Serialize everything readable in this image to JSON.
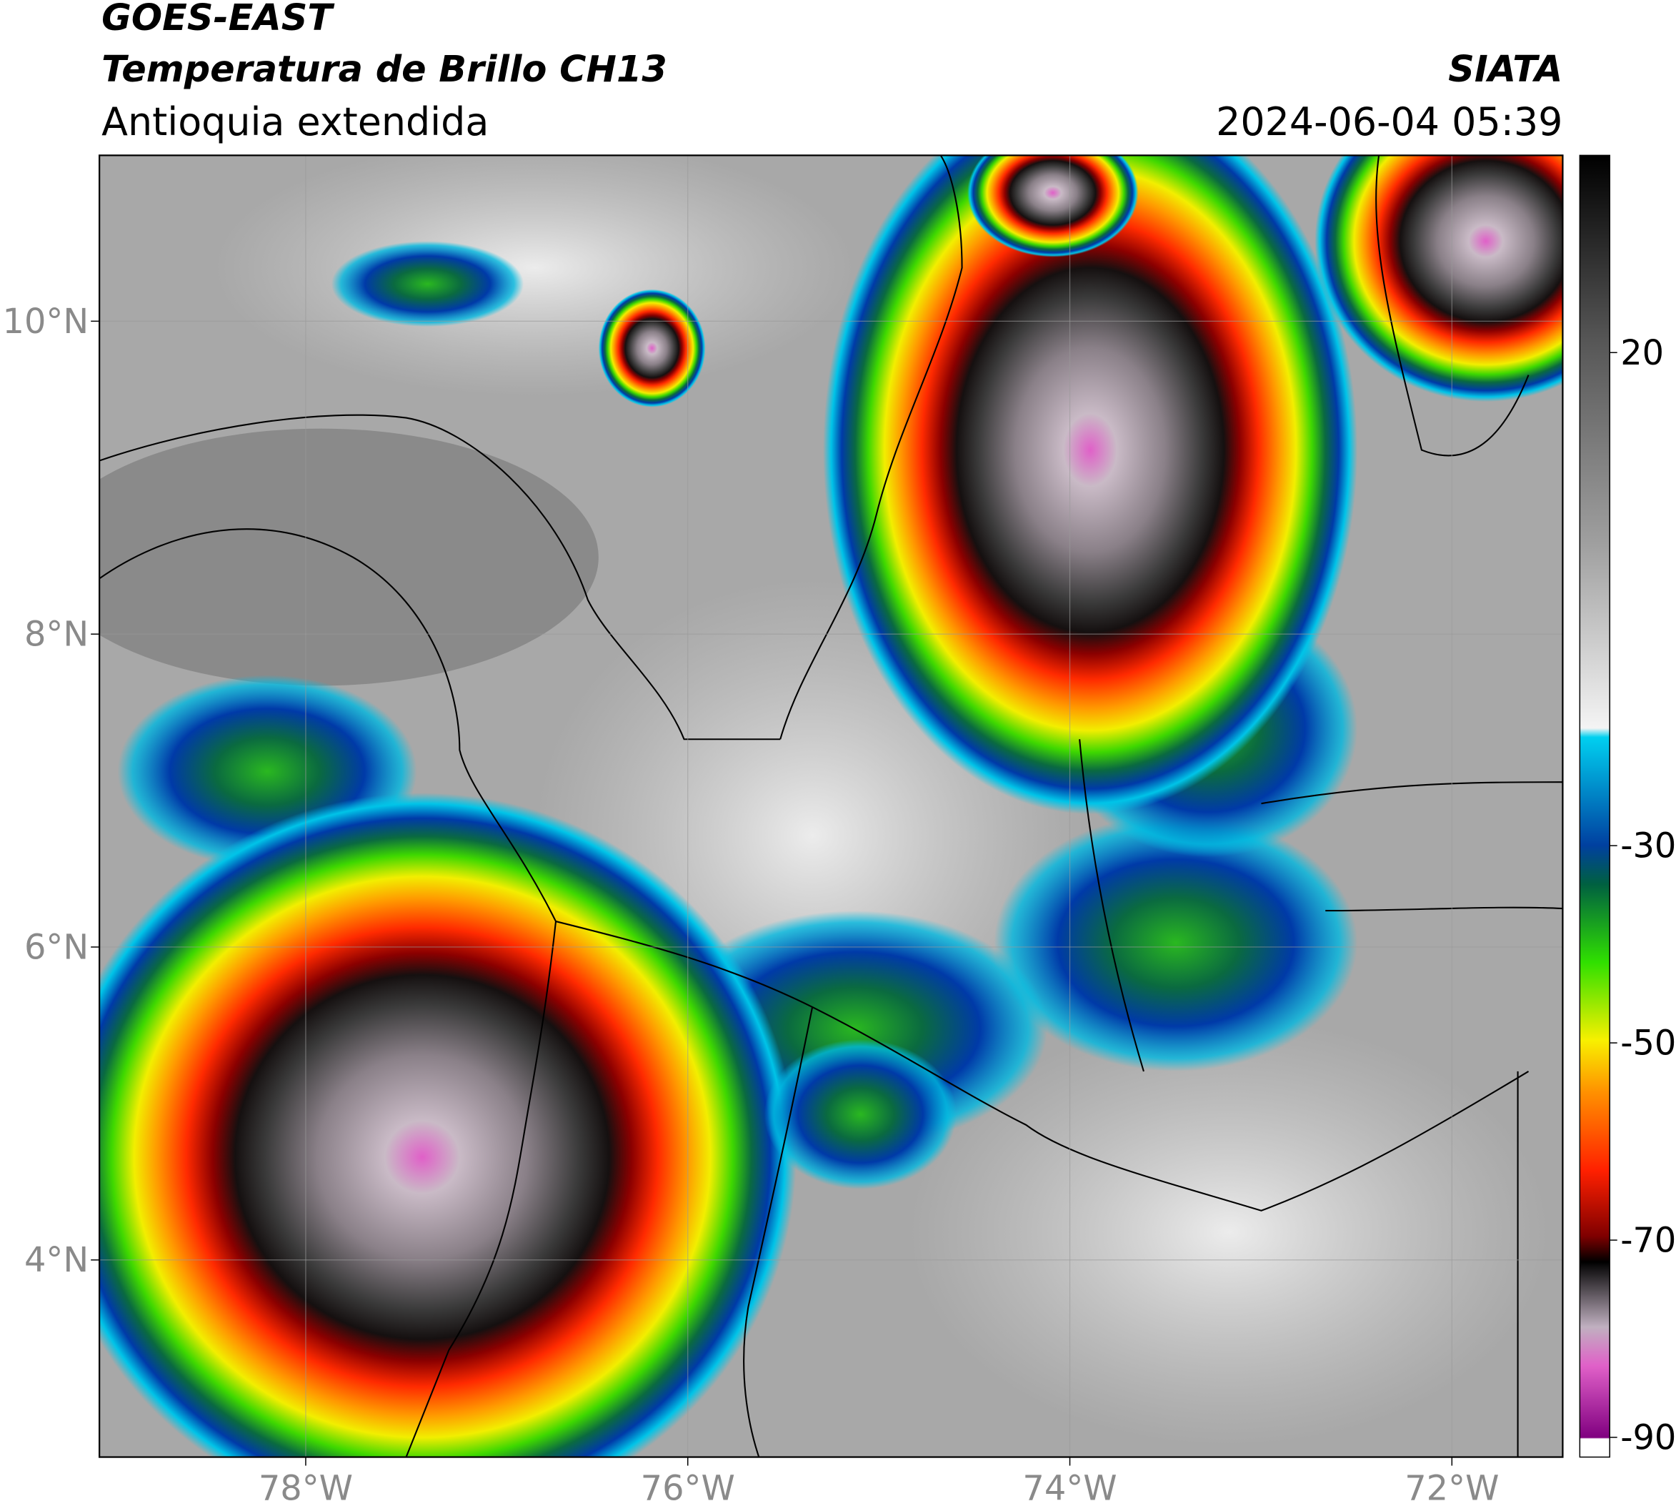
{
  "header": {
    "title": "GOES-EAST",
    "subtitle": "Temperatura de Brillo CH13",
    "region": "Antioquia extendida",
    "organization": "SIATA",
    "datetime": "2024-06-04 05:39"
  },
  "map": {
    "xlim": [
      -79.08,
      -71.42
    ],
    "ylim": [
      2.74,
      11.06
    ],
    "xticks": [
      {
        "value": -78,
        "label": "78°W"
      },
      {
        "value": -76,
        "label": "76°W"
      },
      {
        "value": -74,
        "label": "74°W"
      },
      {
        "value": -72,
        "label": "72°W"
      }
    ],
    "yticks": [
      {
        "value": 4,
        "label": "4°N"
      },
      {
        "value": 6,
        "label": "6°N"
      },
      {
        "value": 8,
        "label": "8°N"
      },
      {
        "value": 10,
        "label": "10°N"
      }
    ]
  },
  "colorbar": {
    "clim": [
      -92,
      40
    ],
    "ticks": [
      20,
      -30,
      -50,
      -70,
      -90
    ]
  }
}
